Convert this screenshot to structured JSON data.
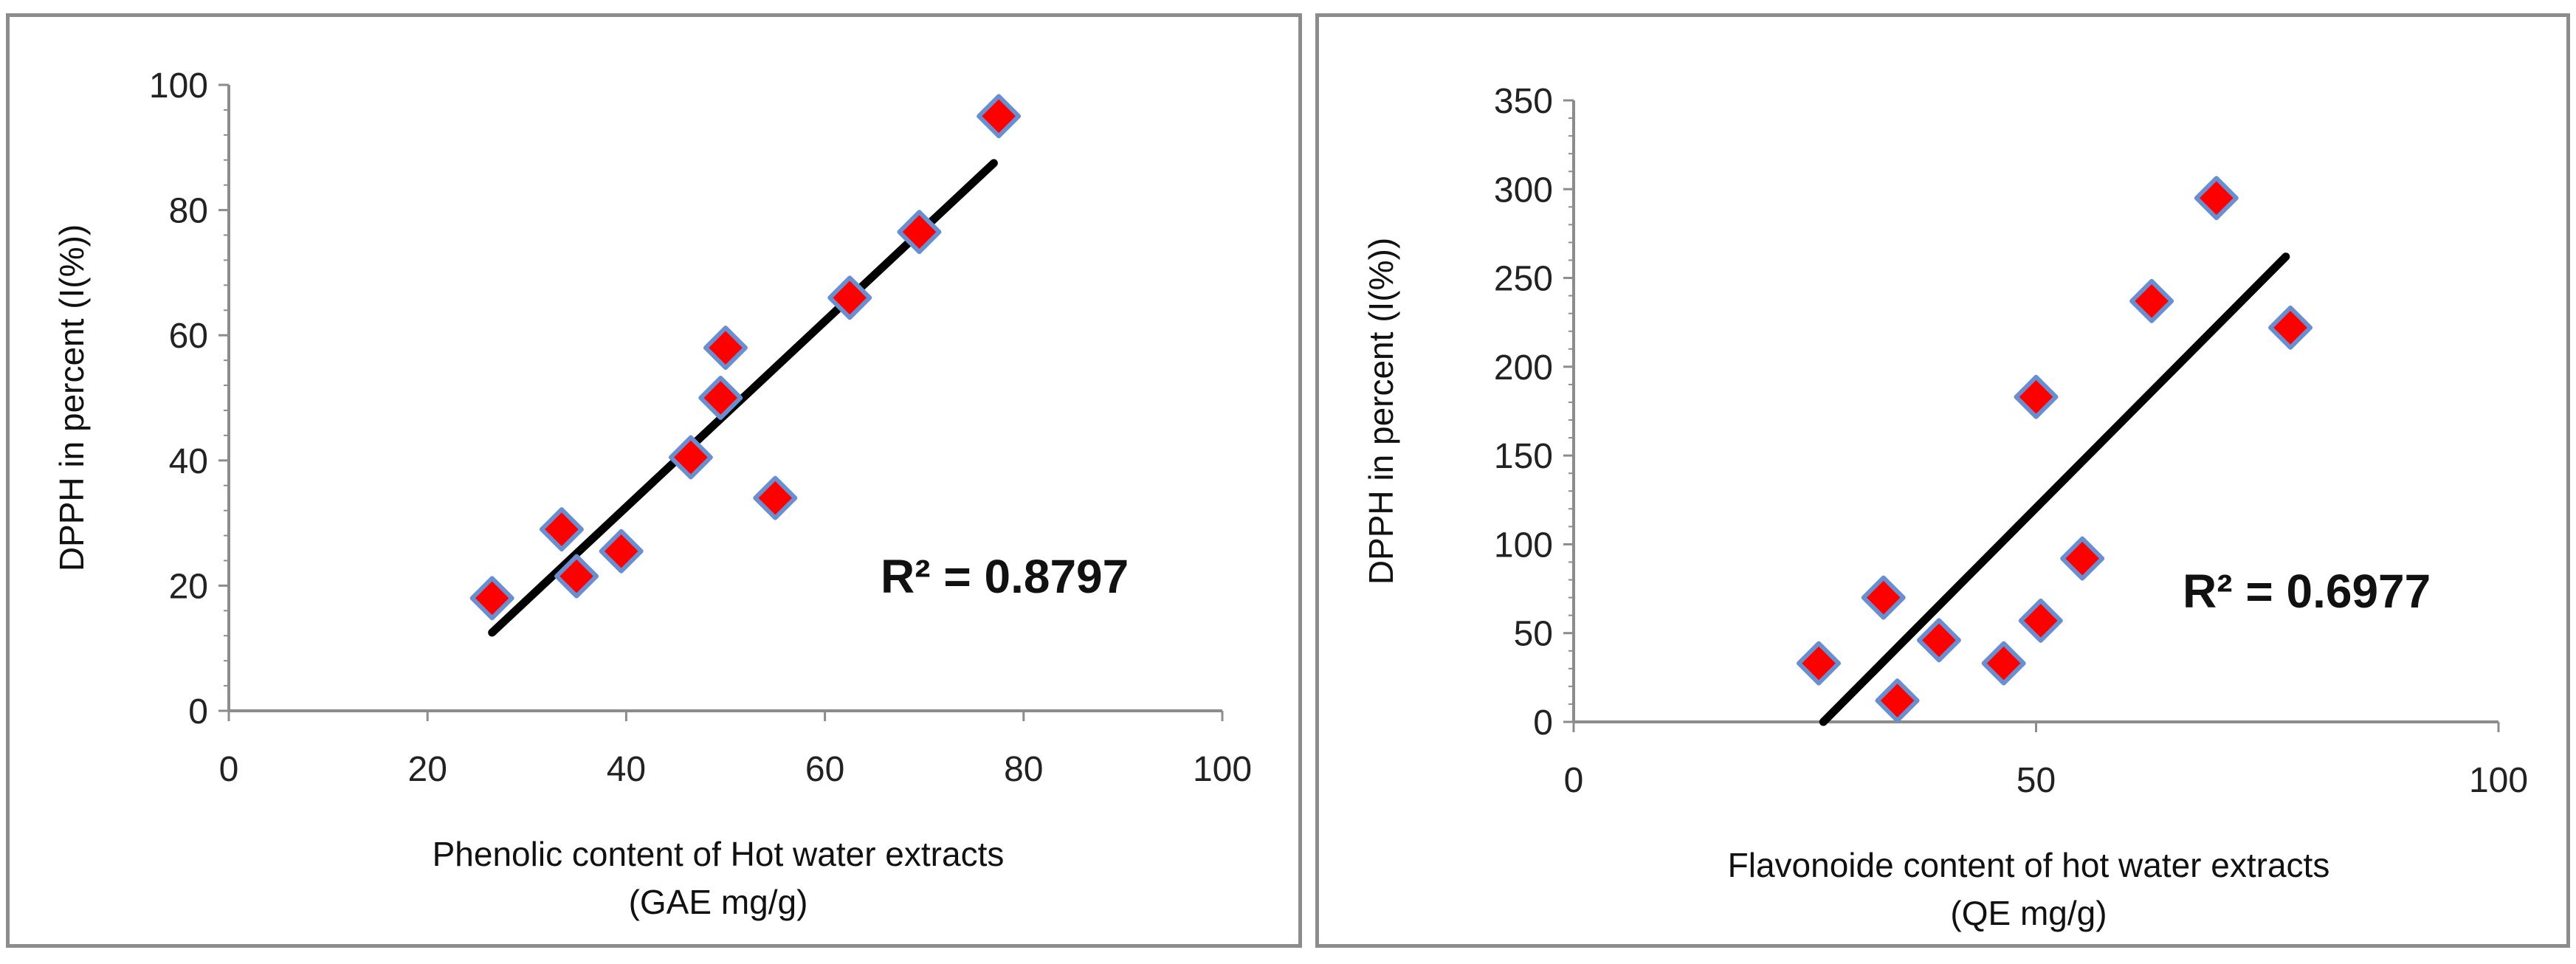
{
  "colors": {
    "marker_fill": "#ff0000",
    "marker_stroke": "#6a8fd0",
    "trendline": "#000000",
    "axis": "#8c8c8c",
    "border": "#8c8c8c"
  },
  "chart_data": [
    {
      "type": "scatter",
      "xlabel_line1": "Phenolic content of Hot water extracts",
      "xlabel_line2": "(GAE mg/g)",
      "ylabel": "DPPH  in percent (I(%))",
      "xlim": [
        0,
        100
      ],
      "ylim": [
        0,
        100
      ],
      "x_ticks": [
        0,
        20,
        40,
        60,
        80,
        100
      ],
      "y_ticks": [
        0,
        20,
        40,
        60,
        80,
        100
      ],
      "x_tick_labels": [
        "0",
        "20",
        "40",
        "60",
        "80",
        "100"
      ],
      "y_tick_labels": [
        "0",
        "20",
        "40",
        "60",
        "80",
        "100"
      ],
      "points": [
        {
          "x": 26.5,
          "y": 18
        },
        {
          "x": 33.5,
          "y": 29
        },
        {
          "x": 35,
          "y": 21.5
        },
        {
          "x": 39.5,
          "y": 25.5
        },
        {
          "x": 46.5,
          "y": 40.5
        },
        {
          "x": 49.5,
          "y": 50
        },
        {
          "x": 50,
          "y": 58
        },
        {
          "x": 55,
          "y": 34
        },
        {
          "x": 62.5,
          "y": 66
        },
        {
          "x": 69.5,
          "y": 76.5
        },
        {
          "x": 77.5,
          "y": 95
        }
      ],
      "trendline": {
        "x": [
          26.5,
          77
        ],
        "y": [
          12.5,
          87.5
        ]
      },
      "annotation": "R² = 0.8797",
      "grid": false
    },
    {
      "type": "scatter",
      "xlabel_line1": "Flavonoide content of hot water extracts",
      "xlabel_line2": "(QE mg/g)",
      "ylabel": "DPPH in percent (I(%))",
      "xlim": [
        0,
        100
      ],
      "ylim": [
        0,
        350
      ],
      "x_ticks": [
        0,
        50,
        100
      ],
      "y_ticks": [
        0,
        50,
        100,
        150,
        200,
        250,
        300,
        350
      ],
      "x_tick_labels": [
        "0",
        "50",
        "100"
      ],
      "y_tick_labels": [
        "0",
        "50",
        "100",
        "150",
        "200",
        "250",
        "300",
        "350"
      ],
      "points": [
        {
          "x": 26.5,
          "y": 33
        },
        {
          "x": 33.5,
          "y": 70
        },
        {
          "x": 35,
          "y": 12
        },
        {
          "x": 39.5,
          "y": 46
        },
        {
          "x": 46.5,
          "y": 33
        },
        {
          "x": 50,
          "y": 183
        },
        {
          "x": 50.5,
          "y": 57
        },
        {
          "x": 55,
          "y": 92
        },
        {
          "x": 62.5,
          "y": 237
        },
        {
          "x": 69.5,
          "y": 295
        },
        {
          "x": 77.5,
          "y": 222
        }
      ],
      "trendline": {
        "x": [
          27,
          77
        ],
        "y": [
          0,
          262
        ]
      },
      "annotation": "R² = 0.6977",
      "grid": false
    }
  ]
}
